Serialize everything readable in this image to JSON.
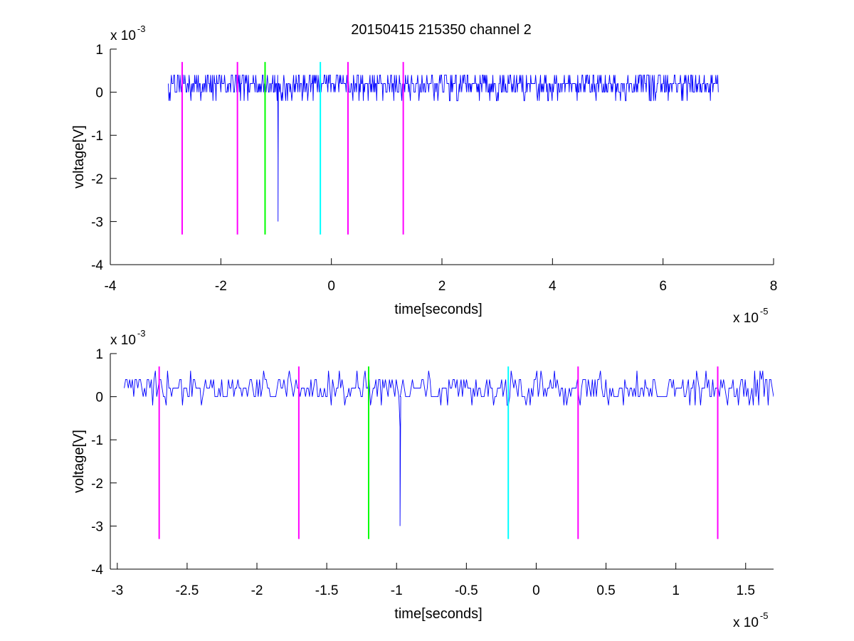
{
  "title": "20150415 215350 channel 2",
  "colors": {
    "trace": "#0000ff",
    "magenta": "#ff00ff",
    "green": "#00ff00",
    "cyan": "#00ffff",
    "axis": "#000000"
  },
  "chart_data": [
    {
      "type": "line",
      "title": "20150415 215350 channel 2",
      "xlabel": "time[seconds]",
      "ylabel": "voltage[V]",
      "x_exponent_label": "x 10",
      "x_exponent": "-5",
      "y_exponent_label": "x 10",
      "y_exponent": "-3",
      "xlim": [
        -4,
        8
      ],
      "ylim": [
        -4,
        1
      ],
      "xticks": [
        -4,
        -2,
        0,
        2,
        4,
        6,
        8
      ],
      "xtick_labels": [
        "-4",
        "-2",
        "0",
        "2",
        "4",
        "6",
        "8"
      ],
      "yticks": [
        1,
        0,
        -1,
        -2,
        -3,
        -4
      ],
      "ytick_labels": [
        "1",
        "0",
        "-1",
        "-2",
        "-3",
        "-4"
      ],
      "grid": false,
      "signal": {
        "x_start": -2.95,
        "x_end": 7.0,
        "levels": [
          -0.2,
          0,
          0.2,
          0.4
        ],
        "baseline": 0.2,
        "spike": {
          "x": -0.97,
          "values": [
            -1.5,
            -3.0
          ]
        }
      },
      "markers": [
        {
          "x": -2.7,
          "y": [
            -3.3,
            0.7
          ],
          "color": "magenta"
        },
        {
          "x": -1.7,
          "y": [
            -3.3,
            0.7
          ],
          "color": "magenta"
        },
        {
          "x": -1.2,
          "y": [
            -3.3,
            0.7
          ],
          "color": "green"
        },
        {
          "x": -0.2,
          "y": [
            -3.3,
            0.7
          ],
          "color": "cyan"
        },
        {
          "x": 0.3,
          "y": [
            -3.3,
            0.7
          ],
          "color": "magenta"
        },
        {
          "x": 1.3,
          "y": [
            -3.3,
            0.7
          ],
          "color": "magenta"
        }
      ]
    },
    {
      "type": "line",
      "title": "",
      "xlabel": "time[seconds]",
      "ylabel": "voltage[V]",
      "x_exponent_label": "x 10",
      "x_exponent": "-5",
      "y_exponent_label": "x 10",
      "y_exponent": "-3",
      "xlim": [
        -3.05,
        1.7
      ],
      "ylim": [
        -4,
        1
      ],
      "xticks": [
        -3,
        -2.5,
        -2,
        -1.5,
        -1,
        -0.5,
        0,
        0.5,
        1,
        1.5
      ],
      "xtick_labels": [
        "-3",
        "-2.5",
        "-2",
        "-1.5",
        "-1",
        "-0.5",
        "0",
        "0.5",
        "1",
        "1.5"
      ],
      "yticks": [
        1,
        0,
        -1,
        -2,
        -3,
        -4
      ],
      "ytick_labels": [
        "1",
        "0",
        "-1",
        "-2",
        "-3",
        "-4"
      ],
      "grid": false,
      "signal": {
        "x_start": -2.95,
        "x_end": 1.7,
        "levels": [
          -0.2,
          0,
          0.2,
          0.4,
          0.6
        ],
        "baseline": 0.2,
        "spike": {
          "x": -0.98,
          "values": [
            -0.7,
            -2.2,
            -3.0
          ]
        }
      },
      "markers": [
        {
          "x": -2.7,
          "y": [
            -3.3,
            0.7
          ],
          "color": "magenta"
        },
        {
          "x": -1.7,
          "y": [
            -3.3,
            0.7
          ],
          "color": "magenta"
        },
        {
          "x": -1.2,
          "y": [
            -3.3,
            0.7
          ],
          "color": "green"
        },
        {
          "x": -0.2,
          "y": [
            -3.3,
            0.7
          ],
          "color": "cyan"
        },
        {
          "x": 0.3,
          "y": [
            -3.3,
            0.7
          ],
          "color": "magenta"
        },
        {
          "x": 1.3,
          "y": [
            -3.3,
            0.7
          ],
          "color": "magenta"
        }
      ]
    }
  ]
}
